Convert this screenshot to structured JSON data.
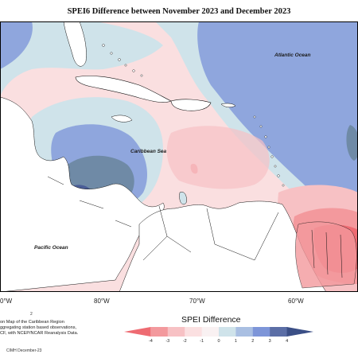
{
  "title": "SPEI6 Difference between November 2023 and December 2023",
  "ocean_labels": {
    "atlantic": "Atlantic Ocean",
    "caribbean": "Caribbean Sea",
    "pacific": "Pacific Ocean"
  },
  "longitude_labels": [
    "0°W",
    "80°W",
    "70°W",
    "60°W"
  ],
  "caption_lines": [
    "on Map of the Caribbean Region",
    "ggregating station based observations,",
    "CF, with NCEP/NCAR Reanalysis Data."
  ],
  "small_number": "2",
  "credit": "CIMH December-23",
  "legend": {
    "title": "SPEI Difference",
    "ticks": [
      "-4",
      "-3",
      "-2",
      "-1",
      "0",
      "1",
      "2",
      "3",
      "4"
    ],
    "colors": [
      "#ee6b72",
      "#f3999d",
      "#f7c1c4",
      "#fbe0e1",
      "#f9f1f2",
      "#cfe3ea",
      "#a9bfe2",
      "#7d95d8",
      "#5b6ea6",
      "#3b4f86"
    ]
  },
  "colors": {
    "strong_negative": "#ee6b72",
    "negative": "#f3999d",
    "light_negative": "#fadfe0",
    "neutral": "#f9f0f1",
    "light_positive": "#cfe3ea",
    "positive": "#8fa6dd",
    "gray_blue": "#6f8aa6",
    "dark_positive": "#4a5d97",
    "land": "#ffffff"
  }
}
